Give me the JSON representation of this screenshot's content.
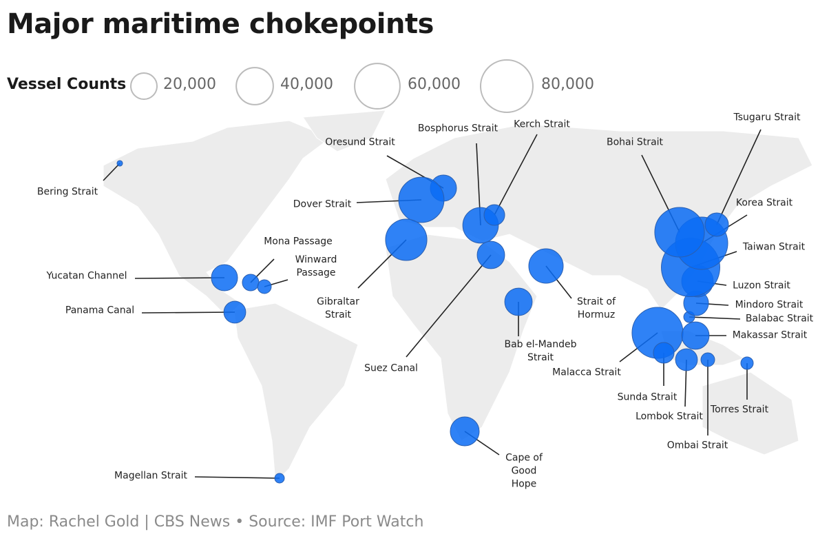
{
  "chart_data": {
    "type": "bubble-map",
    "title": "Major maritime chokepoints",
    "size_legend": {
      "title": "Vessel Counts",
      "ticks": [
        {
          "value": 20000,
          "label": "20,000"
        },
        {
          "value": 40000,
          "label": "40,000"
        },
        {
          "value": 60000,
          "label": "60,000"
        },
        {
          "value": 80000,
          "label": "80,000"
        }
      ]
    },
    "color": "#0a6cf5",
    "categories": [
      "Bering Strait",
      "Yucatan Channel",
      "Mona Passage",
      "Winward Passage",
      "Panama Canal",
      "Magellan Strait",
      "Oresund Strait",
      "Dover Strait",
      "Gibraltar Strait",
      "Bosphorus Strait",
      "Kerch Strait",
      "Suez Canal",
      "Strait of Hormuz",
      "Bab el-Mandeb Strait",
      "Cape of Good Hope",
      "Malacca Strait",
      "Sunda Strait",
      "Lombok Strait",
      "Ombai Strait",
      "Torres Strait",
      "Makassar Strait",
      "Balabac Strait",
      "Mindoro Strait",
      "Luzon Strait",
      "Taiwan Strait",
      "Korea Strait",
      "Bohai Strait",
      "Tsugaru Strait"
    ],
    "values": [
      900,
      20000,
      8000,
      5500,
      14000,
      2700,
      20000,
      60000,
      50000,
      37000,
      12500,
      22000,
      34600,
      22000,
      24400,
      76000,
      12500,
      14000,
      5500,
      4500,
      22000,
      3500,
      18000,
      29000,
      100000,
      80000,
      72000,
      16000
    ],
    "source": "Map: Rachel Gold | CBS News • Source: IMF Port Watch"
  }
}
